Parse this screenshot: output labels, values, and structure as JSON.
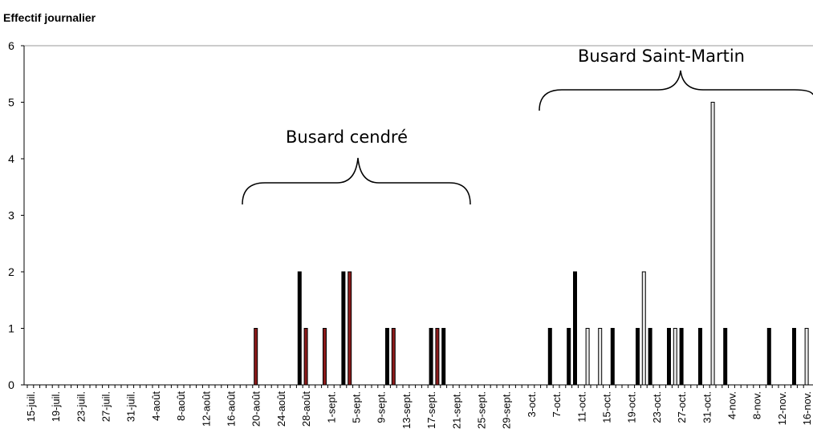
{
  "chart_data": {
    "type": "bar",
    "title": "Effectif journalier",
    "annotations": [
      "Busard cendré",
      "Busard Saint-Martin"
    ],
    "categories": [
      "15-juil.",
      null,
      null,
      null,
      "19-juil.",
      null,
      null,
      null,
      "23-juil.",
      null,
      null,
      null,
      "27-juil.",
      null,
      null,
      null,
      "31-juil.",
      null,
      null,
      null,
      "4-août",
      null,
      null,
      null,
      "8-août",
      null,
      null,
      null,
      "12-août",
      null,
      null,
      null,
      "16-août",
      null,
      null,
      null,
      "20-août",
      null,
      null,
      null,
      "24-août",
      null,
      null,
      null,
      "28-août",
      null,
      null,
      null,
      "1-sept.",
      null,
      null,
      null,
      "5-sept.",
      null,
      null,
      null,
      "9-sept.",
      null,
      null,
      null,
      "13-sept.",
      null,
      null,
      null,
      "17-sept.",
      null,
      null,
      null,
      "21-sept.",
      null,
      null,
      null,
      "25-sept.",
      null,
      null,
      null,
      "29-sept.",
      null,
      null,
      null,
      "3-oct.",
      null,
      null,
      null,
      "7-oct.",
      null,
      null,
      null,
      "11-oct.",
      null,
      null,
      null,
      "15-oct.",
      null,
      null,
      null,
      "19-oct.",
      null,
      null,
      null,
      "23-oct.",
      null,
      null,
      null,
      "27-oct.",
      null,
      null,
      null,
      "31-oct.",
      null,
      null,
      null,
      "4-nov.",
      null,
      null,
      null,
      "8-nov.",
      null,
      null,
      null,
      "12-nov.",
      null,
      null,
      null,
      "16-nov."
    ],
    "series": [
      {
        "color": "#8b1a1a",
        "values": [
          0,
          0,
          0,
          0,
          0,
          0,
          0,
          0,
          0,
          0,
          0,
          0,
          0,
          0,
          0,
          0,
          0,
          0,
          0,
          0,
          0,
          0,
          0,
          0,
          0,
          0,
          0,
          0,
          0,
          0,
          0,
          0,
          0,
          0,
          0,
          0,
          1,
          0,
          0,
          0,
          0,
          0,
          0,
          0,
          1,
          0,
          0,
          1,
          0,
          0,
          0,
          2,
          0,
          0,
          0,
          0,
          0,
          0,
          1,
          0,
          0,
          0,
          0,
          0,
          0,
          1,
          0,
          0,
          0,
          0,
          0,
          0,
          0,
          0,
          0,
          0,
          0,
          0,
          0,
          0,
          0,
          0,
          0,
          0,
          0,
          0,
          0,
          0,
          0,
          0,
          0,
          0,
          0,
          0,
          0,
          0,
          0,
          0,
          0,
          0,
          0,
          0,
          0,
          0,
          0,
          0,
          0,
          0,
          0,
          0,
          0,
          0,
          0,
          0,
          0,
          0,
          0,
          0,
          0,
          0,
          0,
          0,
          0,
          0,
          0
        ]
      },
      {
        "color": "#000000",
        "values": [
          0,
          0,
          0,
          0,
          0,
          0,
          0,
          0,
          0,
          0,
          0,
          0,
          0,
          0,
          0,
          0,
          0,
          0,
          0,
          0,
          0,
          0,
          0,
          0,
          0,
          0,
          0,
          0,
          0,
          0,
          0,
          0,
          0,
          0,
          0,
          0,
          0,
          0,
          0,
          0,
          0,
          0,
          0,
          2,
          0,
          0,
          0,
          0,
          0,
          0,
          2,
          0,
          0,
          0,
          0,
          0,
          0,
          1,
          0,
          0,
          0,
          0,
          0,
          0,
          1,
          0,
          1,
          0,
          0,
          0,
          0,
          0,
          0,
          0,
          0,
          0,
          0,
          0,
          0,
          0,
          0,
          0,
          0,
          1,
          0,
          0,
          1,
          2,
          0,
          0,
          0,
          0,
          0,
          1,
          0,
          0,
          0,
          1,
          0,
          1,
          0,
          0,
          1,
          0,
          1,
          0,
          0,
          1,
          0,
          0,
          0,
          1,
          0,
          0,
          0,
          0,
          0,
          0,
          1,
          0,
          0,
          0,
          1,
          0,
          0
        ]
      },
      {
        "color": "#e6e6e6",
        "values": [
          0,
          0,
          0,
          0,
          0,
          0,
          0,
          0,
          0,
          0,
          0,
          0,
          0,
          0,
          0,
          0,
          0,
          0,
          0,
          0,
          0,
          0,
          0,
          0,
          0,
          0,
          0,
          0,
          0,
          0,
          0,
          0,
          0,
          0,
          0,
          0,
          0,
          0,
          0,
          0,
          0,
          0,
          0,
          0,
          0,
          0,
          0,
          0,
          0,
          0,
          0,
          0,
          0,
          0,
          0,
          0,
          0,
          0,
          0,
          0,
          0,
          0,
          0,
          0,
          0,
          0,
          0,
          0,
          0,
          0,
          0,
          0,
          0,
          0,
          0,
          0,
          0,
          0,
          0,
          0,
          0,
          0,
          0,
          0,
          0,
          0,
          0,
          0,
          0,
          1,
          0,
          1,
          0,
          0,
          0,
          0,
          0,
          0,
          2,
          0,
          0,
          0,
          0,
          1,
          0,
          0,
          0,
          0,
          0,
          5,
          0,
          0,
          0,
          0,
          0,
          0,
          0,
          0,
          0,
          0,
          0,
          0,
          0,
          0,
          1
        ]
      }
    ],
    "ylim": [
      0,
      6
    ],
    "yticks": [
      0,
      1,
      2,
      3,
      4,
      5,
      6
    ]
  }
}
